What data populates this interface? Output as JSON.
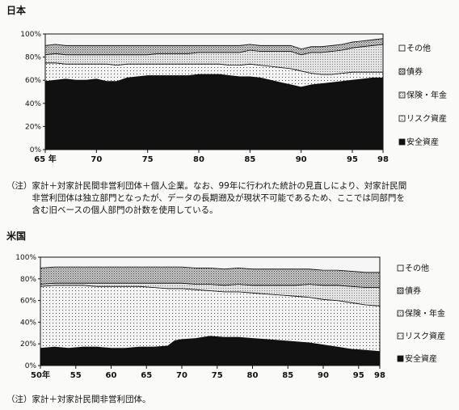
{
  "chart_data": [
    {
      "type": "area",
      "title": "日本",
      "x": [
        65,
        66,
        67,
        68,
        69,
        70,
        71,
        72,
        73,
        74,
        75,
        76,
        77,
        78,
        79,
        80,
        81,
        82,
        83,
        84,
        85,
        86,
        87,
        88,
        89,
        90,
        91,
        92,
        93,
        94,
        95,
        96,
        97,
        98
      ],
      "x_ticks": [
        65,
        70,
        75,
        80,
        85,
        90,
        95,
        98
      ],
      "x_tick_labels": [
        "65 年",
        "70",
        "75",
        "80",
        "85",
        "90",
        "95",
        "98"
      ],
      "ylim": [
        0,
        100
      ],
      "y_ticks": [
        "0%",
        "20%",
        "40%",
        "60%",
        "80%",
        "100%"
      ],
      "series": [
        {
          "name": "安全資産",
          "values": [
            59,
            60,
            61,
            60,
            60,
            61,
            59,
            59,
            62,
            63,
            64,
            64,
            64,
            64,
            64,
            65,
            65,
            65,
            64,
            63,
            63,
            62,
            60,
            58,
            56,
            54,
            56,
            57,
            58,
            59,
            60,
            61,
            62,
            62
          ]
        },
        {
          "name": "リスク資産",
          "values": [
            16,
            15,
            13,
            14,
            14,
            13,
            15,
            14,
            12,
            11,
            10,
            10,
            10,
            10,
            10,
            9,
            9,
            9,
            9,
            10,
            11,
            11,
            12,
            13,
            14,
            14,
            10,
            8,
            7,
            7,
            7,
            6,
            5,
            5
          ]
        },
        {
          "name": "保険・年金",
          "values": [
            7,
            8,
            8,
            8,
            8,
            8,
            8,
            9,
            8,
            8,
            8,
            9,
            9,
            9,
            9,
            10,
            10,
            10,
            11,
            11,
            12,
            12,
            13,
            14,
            15,
            14,
            18,
            19,
            20,
            20,
            21,
            22,
            23,
            24
          ]
        },
        {
          "name": "債券",
          "values": [
            8,
            8,
            8,
            8,
            8,
            8,
            8,
            8,
            8,
            8,
            8,
            7,
            7,
            7,
            7,
            6,
            6,
            6,
            6,
            6,
            5,
            5,
            5,
            5,
            5,
            5,
            5,
            5,
            5,
            5,
            5,
            5,
            5,
            5
          ]
        },
        {
          "name": "その他",
          "values": [
            10,
            9,
            10,
            10,
            10,
            10,
            10,
            10,
            10,
            10,
            10,
            10,
            10,
            10,
            10,
            10,
            10,
            10,
            10,
            10,
            9,
            10,
            10,
            10,
            10,
            13,
            11,
            11,
            10,
            9,
            7,
            6,
            5,
            4
          ]
        }
      ]
    },
    {
      "type": "area",
      "title": "米国",
      "x": [
        50,
        52,
        54,
        56,
        58,
        60,
        62,
        64,
        66,
        68,
        69,
        70,
        72,
        74,
        76,
        78,
        80,
        82,
        84,
        86,
        88,
        90,
        92,
        94,
        96,
        98
      ],
      "x_ticks": [
        50,
        55,
        60,
        65,
        70,
        75,
        80,
        85,
        90,
        95,
        98
      ],
      "x_tick_labels": [
        "50年",
        "55",
        "60",
        "65",
        "70",
        "75",
        "80",
        "85",
        "90",
        "95",
        "98"
      ],
      "ylim": [
        0,
        100
      ],
      "y_ticks": [
        "0%",
        "20%",
        "40%",
        "60%",
        "80%",
        "100%"
      ],
      "series": [
        {
          "name": "安全資産",
          "values": [
            16,
            17,
            16,
            17,
            17,
            16,
            16,
            17,
            17,
            18,
            23,
            24,
            25,
            27,
            26,
            26,
            25,
            24,
            23,
            22,
            21,
            19,
            17,
            15,
            14,
            13
          ]
        },
        {
          "name": "リスク資産",
          "values": [
            57,
            57,
            58,
            57,
            56,
            57,
            57,
            56,
            55,
            53,
            48,
            47,
            45,
            42,
            42,
            42,
            42,
            42,
            42,
            42,
            42,
            42,
            43,
            43,
            42,
            42
          ]
        },
        {
          "name": "保険・年金",
          "values": [
            2,
            2,
            2,
            2,
            3,
            3,
            3,
            3,
            4,
            5,
            5,
            5,
            5,
            6,
            6,
            7,
            7,
            8,
            9,
            10,
            12,
            13,
            14,
            15,
            16,
            17
          ]
        },
        {
          "name": "債券",
          "values": [
            15,
            15,
            15,
            15,
            15,
            15,
            15,
            15,
            15,
            15,
            15,
            15,
            15,
            15,
            15,
            15,
            15,
            15,
            15,
            15,
            14,
            14,
            14,
            14,
            14,
            14
          ]
        },
        {
          "name": "その他",
          "values": [
            10,
            9,
            9,
            9,
            9,
            9,
            9,
            9,
            9,
            9,
            9,
            9,
            10,
            10,
            11,
            10,
            11,
            11,
            11,
            11,
            11,
            12,
            12,
            13,
            14,
            14
          ]
        }
      ]
    }
  ],
  "legend": [
    "その他",
    "債券",
    "保険・年金",
    "リスク資産",
    "安全資産"
  ],
  "notes": {
    "japan": "（注）家計＋対家計民間非営利団体＋個人企業。なお、99年に行われた統計の見直しにより、対家計民間\n　　　非営利団体は独立部門となったが、データの長期遡及が現状不可能であるため、ここでは同部門を\n　　　含む旧ベースの個人部門の計数を使用している。",
    "us": "（注）家計＋対家計民間非営利団体。"
  }
}
